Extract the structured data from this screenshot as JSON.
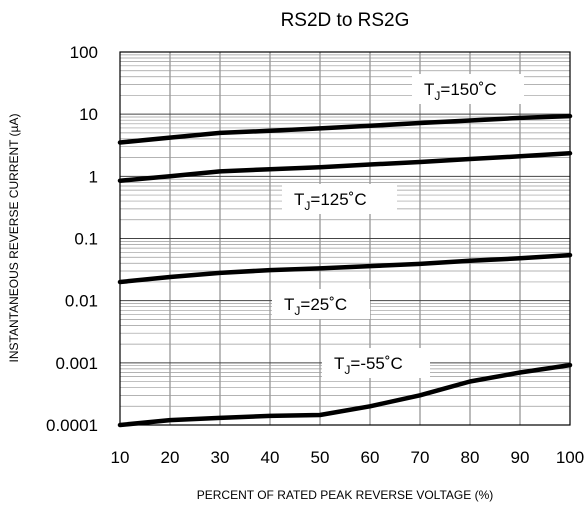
{
  "chart_data": {
    "type": "line",
    "title": "RS2D  to RS2G",
    "xlabel": "PERCENT OF RATED PEAK REVERSE VOLTAGE (%)",
    "ylabel": "INSTANTANEOUS REVERSE CURRENT (µA)",
    "xlim": [
      10,
      100
    ],
    "ylim": [
      0.0001,
      100
    ],
    "yscale": "log",
    "grid": true,
    "x_ticks": [
      "10",
      "20",
      "30",
      "40",
      "50",
      "60",
      "70",
      "80",
      "90",
      "100"
    ],
    "y_ticks": [
      "0.0001",
      "0.001",
      "0.01",
      "0.1",
      "1",
      "10",
      "100"
    ],
    "series": [
      {
        "name": "TJ=150°C",
        "label": {
          "main": "T",
          "sub": "J",
          "rest": "=150˚C"
        },
        "x": [
          10,
          20,
          30,
          40,
          50,
          60,
          70,
          80,
          90,
          100
        ],
        "y": [
          3.5,
          4.2,
          5.0,
          5.4,
          5.9,
          6.5,
          7.2,
          7.9,
          8.7,
          9.3
        ]
      },
      {
        "name": "TJ=125°C",
        "label": {
          "main": "T",
          "sub": "J",
          "rest": "=125˚C"
        },
        "x": [
          10,
          20,
          30,
          40,
          50,
          60,
          70,
          80,
          90,
          100
        ],
        "y": [
          0.85,
          1.0,
          1.2,
          1.3,
          1.4,
          1.55,
          1.7,
          1.9,
          2.1,
          2.35
        ]
      },
      {
        "name": "TJ=25°C",
        "label": {
          "main": "T",
          "sub": "J",
          "rest": "=25˚C"
        },
        "x": [
          10,
          20,
          30,
          40,
          50,
          60,
          70,
          80,
          90,
          100
        ],
        "y": [
          0.02,
          0.024,
          0.028,
          0.031,
          0.033,
          0.036,
          0.039,
          0.044,
          0.048,
          0.054
        ]
      },
      {
        "name": "TJ=-55°C",
        "label": {
          "main": "T",
          "sub": "J",
          "rest": "=-55˚C"
        },
        "x": [
          10,
          20,
          30,
          40,
          50,
          60,
          70,
          80,
          90,
          100
        ],
        "y": [
          0.0001,
          0.00012,
          0.00013,
          0.00014,
          0.000145,
          0.0002,
          0.0003,
          0.0005,
          0.0007,
          0.00092
        ]
      }
    ]
  }
}
